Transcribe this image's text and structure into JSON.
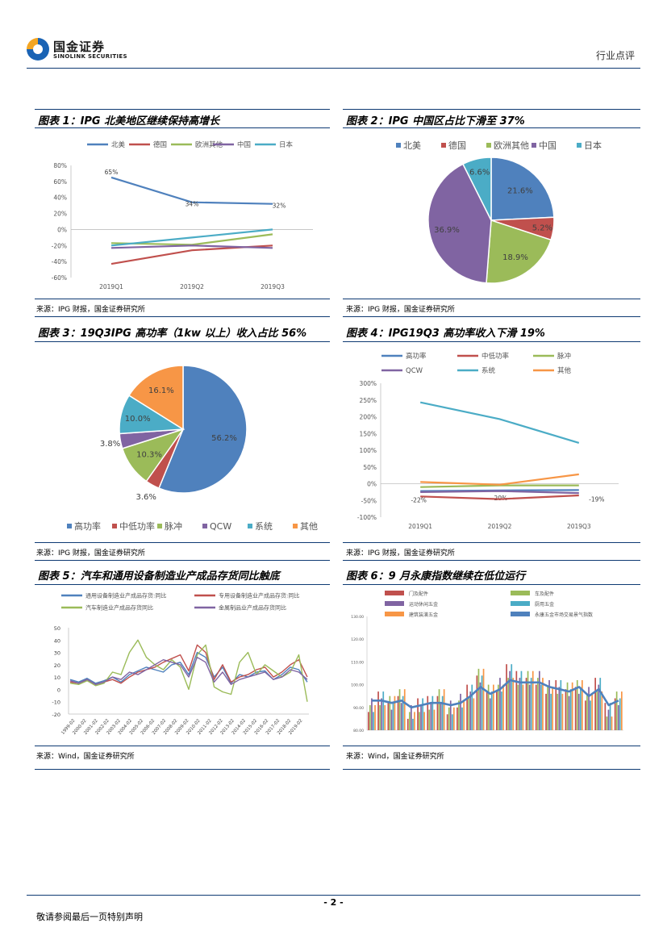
{
  "header": {
    "brand_cn": "国金证券",
    "brand_en": "SINOLINK SECURITIES",
    "right": "行业点评"
  },
  "figures": {
    "f1": {
      "title": "图表 1：IPG 北美地区继续保持高增长",
      "source": "来源：IPG 财报，国金证券研究所"
    },
    "f2": {
      "title": "图表 2：IPG 中国区占比下滑至 37%",
      "source": "来源：IPG 财报，国金证券研究所"
    },
    "f3": {
      "title": "图表 3：19Q3IPG 高功率（1kw 以上）收入占比 56%",
      "source": "来源：IPG 财报，国金证券研究所"
    },
    "f4": {
      "title": "图表 4：IPG19Q3 高功率收入下滑 19%",
      "source": "来源：IPG 财报，国金证券研究所"
    },
    "f5": {
      "title": "图表 5：汽车和通用设备制造业产成品存货同比触底",
      "source": "来源：Wind，国金证券研究所"
    },
    "f6": {
      "title": "图表 6：9 月永康指数继续在低位运行",
      "source": "来源：Wind，国金证券研究所"
    }
  },
  "footer": {
    "page": "- 2 -",
    "disclaimer": "敬请参阅最后一页特别声明"
  },
  "chart_data": [
    {
      "id": "c1",
      "type": "line",
      "title": "",
      "categories": [
        "2019Q1",
        "2019Q2",
        "2019Q3"
      ],
      "ylim": [
        -60,
        80
      ],
      "yticks": [
        "80%",
        "60%",
        "40%",
        "20%",
        "0%",
        "-20%",
        "-40%",
        "-60%"
      ],
      "series": [
        {
          "name": "北美",
          "color": "#4f81bd",
          "values": [
            65,
            34,
            32
          ],
          "labels": [
            "65%",
            "34%",
            "32%"
          ]
        },
        {
          "name": "德国",
          "color": "#c0504d",
          "values": [
            -43,
            -26,
            -20
          ]
        },
        {
          "name": "欧洲其他",
          "color": "#9bbb59",
          "values": [
            -17,
            -19,
            -6
          ]
        },
        {
          "name": "中国",
          "color": "#8064a2",
          "values": [
            -23,
            -20,
            -23
          ]
        },
        {
          "name": "日本",
          "color": "#4bacc6",
          "values": [
            -20,
            -10,
            0
          ]
        }
      ]
    },
    {
      "id": "c2",
      "type": "pie",
      "title": "",
      "slices": [
        {
          "name": "北美",
          "value": 21.6,
          "label": "21.6%",
          "color": "#4f81bd"
        },
        {
          "name": "德国",
          "value": 5.2,
          "label": "5.2%",
          "color": "#c0504d"
        },
        {
          "name": "欧洲其他",
          "value": 18.9,
          "label": "18.9%",
          "color": "#9bbb59"
        },
        {
          "name": "中国",
          "value": 36.9,
          "label": "36.9%",
          "color": "#8064a2"
        },
        {
          "name": "日本",
          "value": 6.6,
          "label": "6.6%",
          "color": "#4bacc6"
        }
      ]
    },
    {
      "id": "c3",
      "type": "pie",
      "title": "",
      "slices": [
        {
          "name": "高功率",
          "value": 56.2,
          "label": "56.2%",
          "color": "#4f81bd"
        },
        {
          "name": "中低功率",
          "value": 3.6,
          "label": "3.6%",
          "color": "#c0504d"
        },
        {
          "name": "脉冲",
          "value": 10.3,
          "label": "10.3%",
          "color": "#9bbb59"
        },
        {
          "name": "QCW",
          "value": 3.8,
          "label": "3.8%",
          "color": "#8064a2"
        },
        {
          "name": "系统",
          "value": 10.0,
          "label": "10.0%",
          "color": "#4bacc6"
        },
        {
          "name": "其他",
          "value": 16.1,
          "label": "16.1%",
          "color": "#f79646"
        }
      ]
    },
    {
      "id": "c4",
      "type": "line",
      "title": "",
      "categories": [
        "2019Q1",
        "2019Q2",
        "2019Q3"
      ],
      "ylim": [
        -100,
        300
      ],
      "yticks": [
        "300%",
        "250%",
        "200%",
        "150%",
        "100%",
        "50%",
        "0%",
        "-50%",
        "-100%"
      ],
      "series": [
        {
          "name": "高功率",
          "color": "#4f81bd",
          "values": [
            -22,
            -20,
            -19
          ],
          "labels": [
            "-22%",
            "-20%",
            "-19%"
          ]
        },
        {
          "name": "中低功率",
          "color": "#c0504d",
          "values": [
            -38,
            -46,
            -35
          ]
        },
        {
          "name": "脉冲",
          "color": "#9bbb59",
          "values": [
            -10,
            -5,
            -5
          ]
        },
        {
          "name": "QCW",
          "color": "#8064a2",
          "values": [
            -25,
            -22,
            -28
          ]
        },
        {
          "name": "系统",
          "color": "#4bacc6",
          "values": [
            243,
            193,
            122
          ]
        },
        {
          "name": "其他",
          "color": "#f79646",
          "values": [
            5,
            -3,
            28
          ]
        }
      ]
    },
    {
      "id": "c5",
      "type": "line",
      "title": "",
      "ylim": [
        -20,
        50
      ],
      "yticks": [
        "50",
        "40",
        "30",
        "20",
        "10",
        "0",
        "-10",
        "-20"
      ],
      "xticks": [
        "1999-02",
        "2000-02",
        "2001-02",
        "2002-02",
        "2003-02",
        "2004-02",
        "2005-02",
        "2006-02",
        "2007-02",
        "2008-02",
        "2009-02",
        "2010-02",
        "2011-02",
        "2012-02",
        "2013-02",
        "2014-02",
        "2015-02",
        "2016-02",
        "2017-02",
        "2018-02",
        "2019-02"
      ],
      "series": [
        {
          "name": "通用设备制造业产成品存货:同比",
          "color": "#4f81bd",
          "values": [
            8,
            6,
            9,
            5,
            7,
            10,
            6,
            12,
            15,
            18,
            16,
            14,
            20,
            22,
            12,
            30,
            26,
            10,
            18,
            5,
            12,
            10,
            14,
            15,
            8,
            12,
            18,
            16,
            6
          ]
        },
        {
          "name": "专用设备制造业产成品存货:同比",
          "color": "#c0504d",
          "values": [
            6,
            5,
            8,
            4,
            6,
            8,
            5,
            10,
            14,
            16,
            18,
            22,
            25,
            28,
            15,
            36,
            30,
            8,
            20,
            6,
            10,
            12,
            16,
            18,
            10,
            14,
            20,
            24,
            10
          ]
        },
        {
          "name": "汽车制造业产成品存货同比",
          "color": "#9bbb59",
          "values": [
            5,
            4,
            7,
            3,
            5,
            14,
            12,
            30,
            40,
            26,
            20,
            16,
            24,
            18,
            0,
            28,
            36,
            2,
            -2,
            -4,
            22,
            30,
            12,
            20,
            15,
            10,
            14,
            28,
            -10
          ]
        },
        {
          "name": "金属制品业产成品存货同比",
          "color": "#8064a2",
          "values": [
            7,
            5,
            8,
            4,
            6,
            10,
            8,
            14,
            12,
            16,
            20,
            24,
            22,
            20,
            10,
            26,
            22,
            6,
            14,
            4,
            8,
            10,
            12,
            14,
            8,
            10,
            16,
            14,
            8
          ]
        }
      ]
    },
    {
      "id": "c6",
      "type": "bar+line",
      "title": "",
      "ylim": [
        80,
        130
      ],
      "yticks": [
        "130.00",
        "120.00",
        "110.00",
        "100.00",
        "90.00",
        "80.00"
      ],
      "series": [
        {
          "name": "门及配件",
          "color": "#c0504d"
        },
        {
          "name": "车及配件",
          "color": "#9bbb59"
        },
        {
          "name": "运动休闲五金",
          "color": "#8064a2"
        },
        {
          "name": "厨用五金",
          "color": "#4bacc6"
        },
        {
          "name": "建筑装潢五金",
          "color": "#f79646"
        },
        {
          "name": "永康五金市场交易景气指数",
          "color": "#4f81bd",
          "values": [
            93,
            93,
            92,
            93,
            90,
            91,
            92,
            92,
            91,
            92,
            95,
            99,
            96,
            98,
            102,
            101,
            101,
            101,
            99,
            98,
            97,
            99,
            95,
            98,
            91,
            93
          ]
        }
      ],
      "bar_values": [
        92,
        94,
        91,
        96,
        88,
        90,
        93,
        95,
        89,
        94,
        97,
        103,
        98,
        100,
        105,
        104,
        103,
        102,
        100,
        99,
        97,
        100,
        96,
        99,
        90,
        94
      ]
    }
  ]
}
